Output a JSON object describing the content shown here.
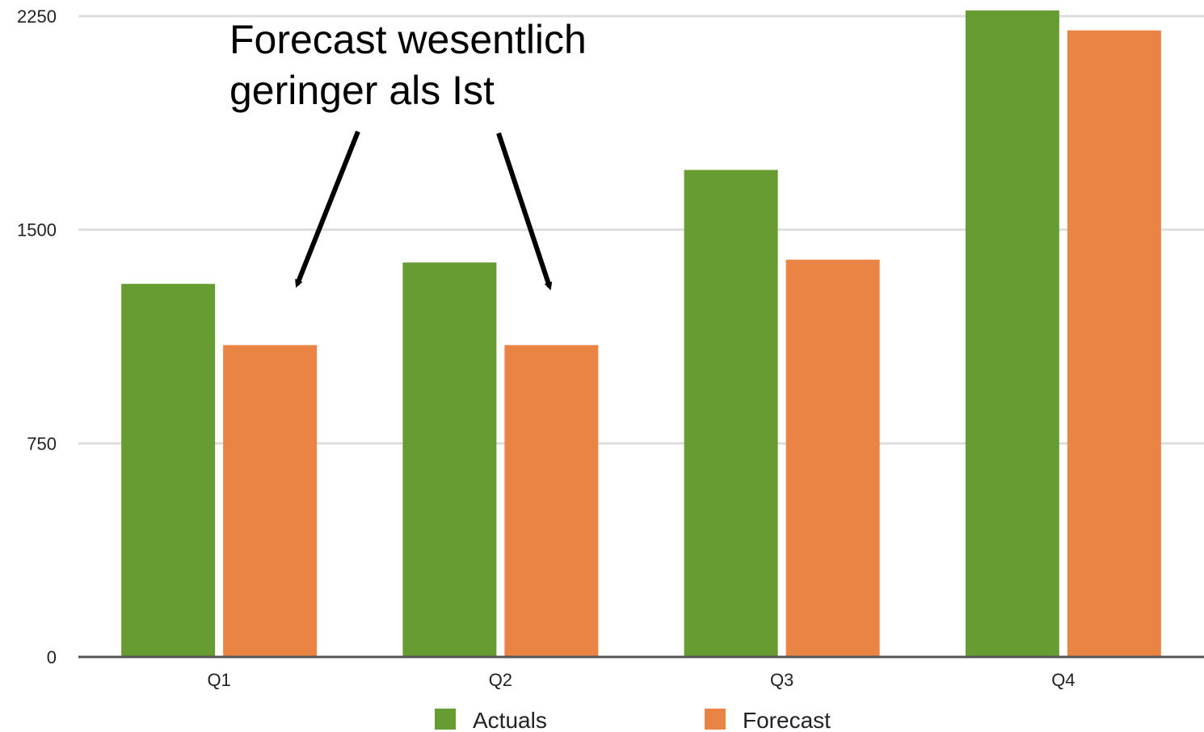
{
  "chart_data": {
    "type": "bar",
    "categories": [
      "Q1",
      "Q2",
      "Q3",
      "Q4"
    ],
    "series": [
      {
        "name": "Actuals",
        "values": [
          1310,
          1385,
          1710,
          2270
        ],
        "color": "#679c33"
      },
      {
        "name": "Forecast",
        "values": [
          1095,
          1095,
          1395,
          2200
        ],
        "color": "#e98445"
      }
    ],
    "ylim": [
      0,
      2250
    ],
    "yticks": [
      "0",
      "750",
      "1500",
      "2250"
    ],
    "ytick_values": [
      0,
      750,
      1500,
      2250
    ],
    "grid": true,
    "legend_position": "bottom",
    "annotation": {
      "lines": [
        "Forecast wesentlich",
        "geringer als Ist"
      ],
      "arrow_targets": [
        "Q1",
        "Q2"
      ]
    },
    "colors": {
      "grid": "#dedede",
      "axis": "#555555"
    }
  }
}
